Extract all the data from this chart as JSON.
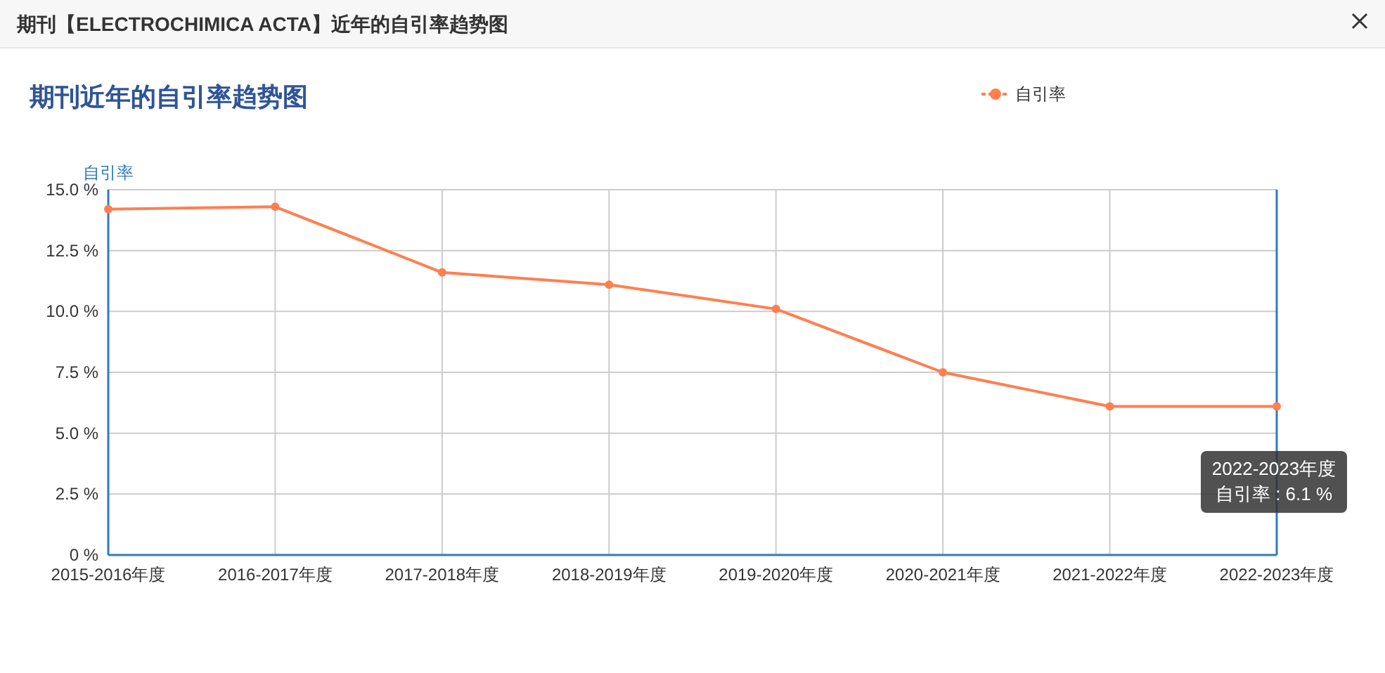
{
  "chart_data": {
    "type": "line",
    "title": "期刊【ELECTROCHIMICA ACTA】近年的自引率趋势图",
    "subtitle": "期刊近年的自引率趋势图",
    "ylabel": "自引率",
    "categories": [
      "2015-2016年度",
      "2016-2017年度",
      "2017-2018年度",
      "2018-2019年度",
      "2019-2020年度",
      "2020-2021年度",
      "2021-2022年度",
      "2022-2023年度"
    ],
    "series": [
      {
        "name": "自引率",
        "color": "#ff7f50",
        "values": [
          14.2,
          14.3,
          11.6,
          11.1,
          10.1,
          7.5,
          6.1,
          6.1
        ]
      }
    ],
    "ylim": [
      0,
      15
    ],
    "yticks": [
      {
        "value": 0,
        "label": "0 %"
      },
      {
        "value": 2.5,
        "label": "2.5 %"
      },
      {
        "value": 5,
        "label": "5.0 %"
      },
      {
        "value": 7.5,
        "label": "7.5 %"
      },
      {
        "value": 10,
        "label": "10.0 %"
      },
      {
        "value": 12.5,
        "label": "12.5 %"
      },
      {
        "value": 15,
        "label": "15.0 %"
      }
    ],
    "grid": true,
    "legend": "top right",
    "marker": "circle",
    "ref_lines": [
      {
        "axis": "x",
        "value": "2022-2023年度",
        "color": "#2f7bbf"
      }
    ],
    "annotations": [
      "2022-2023年度",
      "自引率 : 6.1 %"
    ]
  }
}
